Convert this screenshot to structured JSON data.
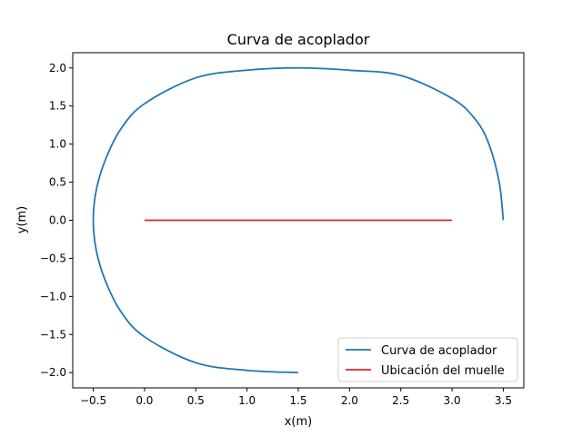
{
  "chart_data": {
    "type": "line",
    "title": "Curva de acoplador",
    "xlabel": "x(m)",
    "ylabel": "y(m)",
    "xlim": [
      -0.7,
      3.7
    ],
    "ylim": [
      -2.2,
      2.2
    ],
    "xticks": [
      -0.5,
      0.0,
      0.5,
      1.0,
      1.5,
      2.0,
      2.5,
      3.0,
      3.5
    ],
    "xtick_labels": [
      "−0.5",
      "0.0",
      "0.5",
      "1.0",
      "1.5",
      "2.0",
      "2.5",
      "3.0",
      "3.5"
    ],
    "yticks": [
      -2.0,
      -1.5,
      -1.0,
      -0.5,
      0.0,
      0.5,
      1.0,
      1.5,
      2.0
    ],
    "ytick_labels": [
      "−2.0",
      "−1.5",
      "−1.0",
      "−0.5",
      "0.0",
      "0.5",
      "1.0",
      "1.5",
      "2.0"
    ],
    "grid": false,
    "legend_position": "lower right",
    "series": [
      {
        "name": "Curva de acoplador",
        "color": "#1f77b4",
        "x": [
          3.5,
          3.46,
          3.36,
          3.23,
          3.0,
          2.5,
          2.0,
          1.5,
          1.0,
          0.5,
          0.0,
          -0.23,
          -0.38,
          -0.47,
          -0.5,
          -0.47,
          -0.38,
          -0.23,
          0.0,
          0.5,
          1.0,
          1.5
        ],
        "y": [
          0.0,
          0.5,
          1.0,
          1.32,
          1.6,
          1.9,
          1.97,
          2.0,
          1.97,
          1.87,
          1.53,
          1.2,
          0.8,
          0.4,
          0.0,
          -0.4,
          -0.8,
          -1.2,
          -1.53,
          -1.87,
          -1.97,
          -2.0
        ]
      },
      {
        "name": "Ubicación del muelle",
        "color": "#d62728",
        "x": [
          0.0,
          3.0
        ],
        "y": [
          0.0,
          0.0
        ]
      }
    ]
  }
}
